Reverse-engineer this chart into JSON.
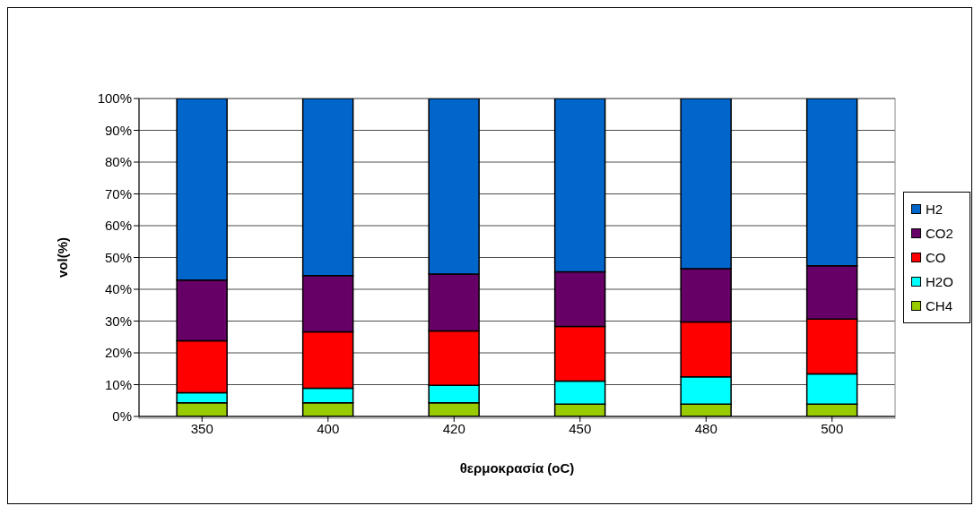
{
  "chart_data": {
    "type": "bar",
    "stacked": true,
    "xlabel": "θερμοκρασία (oC)",
    "ylabel": "vol(%)",
    "categories": [
      "350",
      "400",
      "420",
      "450",
      "480",
      "500"
    ],
    "series": [
      {
        "name": "CH4",
        "color": "#99cc00",
        "values": [
          4.3,
          4.3,
          4.3,
          3.9,
          3.9,
          3.9
        ]
      },
      {
        "name": "H2O",
        "color": "#00ffff",
        "values": [
          3.2,
          4.6,
          5.5,
          7.2,
          8.6,
          9.5
        ]
      },
      {
        "name": "CO",
        "color": "#ff0000",
        "values": [
          16.3,
          17.7,
          17.1,
          17.2,
          17.2,
          17.2
        ]
      },
      {
        "name": "CO2",
        "color": "#660066",
        "values": [
          19.1,
          17.7,
          17.9,
          17.2,
          16.8,
          16.8
        ]
      },
      {
        "name": "H2",
        "color": "#0066cc",
        "values": [
          57.1,
          55.7,
          55.2,
          54.5,
          53.5,
          52.6
        ]
      }
    ],
    "ylim": [
      0,
      100
    ],
    "yticks": [
      {
        "value": 0,
        "label": "0%"
      },
      {
        "value": 10,
        "label": "10%"
      },
      {
        "value": 20,
        "label": "20%"
      },
      {
        "value": 30,
        "label": "30%"
      },
      {
        "value": 40,
        "label": "40%"
      },
      {
        "value": 50,
        "label": "50%"
      },
      {
        "value": 60,
        "label": "60%"
      },
      {
        "value": 70,
        "label": "70%"
      },
      {
        "value": 80,
        "label": "80%"
      },
      {
        "value": 90,
        "label": "90%"
      },
      {
        "value": 100,
        "label": "100%"
      }
    ],
    "grid": "y",
    "legend": "right"
  }
}
